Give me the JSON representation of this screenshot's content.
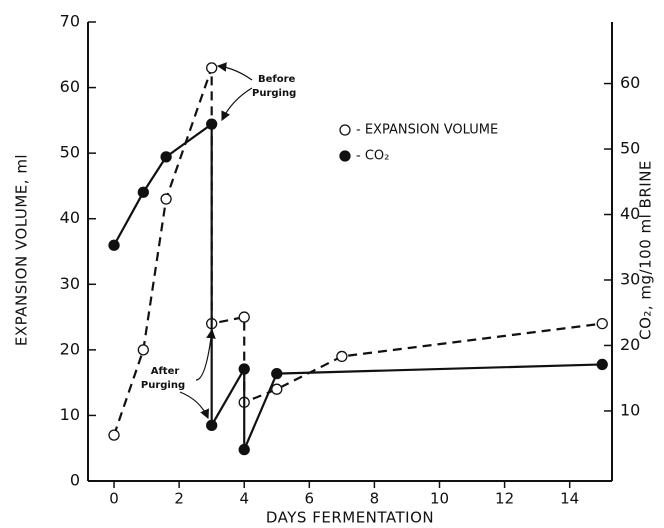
{
  "chart_data": {
    "type": "line",
    "x_label": "DAYS FERMENTATION",
    "y_label": "EXPANSION VOLUME, ml",
    "y2_label": "CO₂, mg/100 ml BRINE",
    "xlim": [
      -0.8,
      15.3
    ],
    "xticks": [
      0,
      2,
      4,
      6,
      8,
      10,
      12,
      14
    ],
    "ylim": [
      0,
      70
    ],
    "yticks": [
      0,
      10,
      20,
      30,
      40,
      50,
      60,
      70
    ],
    "y2lim": [
      -0.7,
      69.4
    ],
    "y2ticks": [
      10,
      20,
      30,
      40,
      50,
      60
    ],
    "series": [
      {
        "name": "- EXPANSION VOLUME",
        "color": "#111",
        "marker": "open",
        "dashed": true,
        "x": [
          0,
          0.9,
          1.6,
          3,
          3,
          4,
          4,
          5,
          7,
          15
        ],
        "values": [
          7,
          20,
          43,
          63,
          24,
          25,
          12,
          14,
          19,
          24
        ]
      },
      {
        "name": "- CO₂",
        "color": "#111",
        "marker": "filled",
        "dashed": false,
        "axis": "y2",
        "x": [
          0,
          0.9,
          1.6,
          3,
          3,
          4,
          4,
          5,
          15
        ],
        "values": [
          35.3,
          43.4,
          48.8,
          53.8,
          7.8,
          16.4,
          4.1,
          15.7,
          17.1
        ]
      }
    ],
    "annotations": [
      "Before",
      "Purging",
      "After",
      "Purging"
    ]
  }
}
